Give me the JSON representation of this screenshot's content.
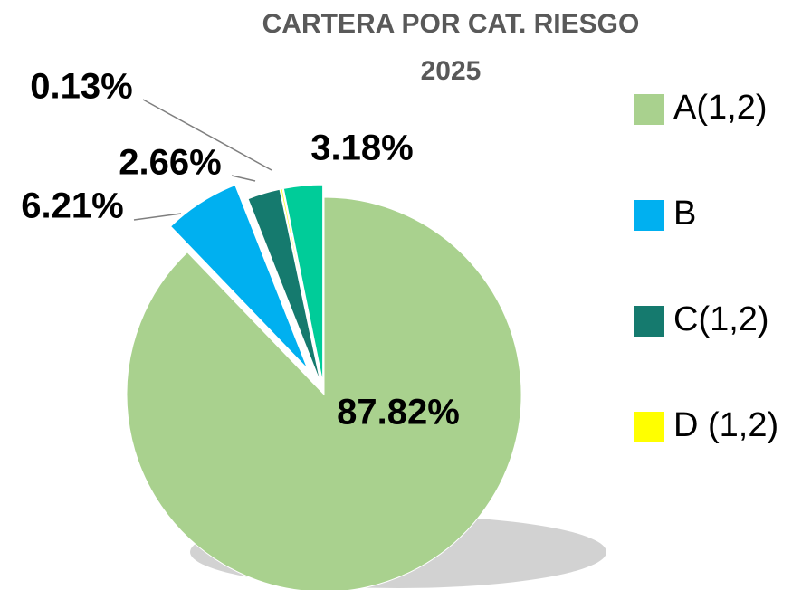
{
  "chart_data": {
    "type": "pie",
    "title": "CARTERA POR CAT. RIESGO",
    "subtitle": "2025",
    "categories": [
      "A(1,2)",
      "B",
      "C(1,2)",
      "D (1,2)",
      null
    ],
    "values": [
      87.82,
      6.21,
      2.66,
      0.13,
      3.18
    ],
    "value_labels": [
      "87.82%",
      "6.21%",
      "2.66%",
      "0.13%",
      "3.18%"
    ],
    "colors": [
      "#a9d18e",
      "#00b0f0",
      "#157a6e",
      "#ffff00",
      "#00cc99"
    ],
    "legend": "right"
  }
}
